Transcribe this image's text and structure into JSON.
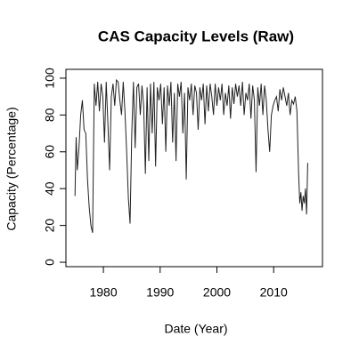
{
  "chart_data": {
    "type": "line",
    "title": "CAS Capacity Levels (Raw)",
    "x_label": "Date (Year)",
    "y_label": "Capacity (Percentage)",
    "color": "#222222",
    "x": [
      1975,
      1975.2,
      1975.4,
      1975.7,
      1976,
      1976.3,
      1976.6,
      1976.9,
      1977.2,
      1977.5,
      1977.8,
      1978.1,
      1978.4,
      1978.7,
      1979,
      1979.3,
      1979.6,
      1979.9,
      1980.2,
      1980.5,
      1980.8,
      1981.1,
      1981.4,
      1981.7,
      1982,
      1982.3,
      1982.6,
      1982.9,
      1983.2,
      1983.5,
      1983.8,
      1984.1,
      1984.4,
      1984.7,
      1985,
      1985.3,
      1985.6,
      1985.9,
      1986.2,
      1986.5,
      1986.8,
      1987.1,
      1987.4,
      1987.7,
      1988,
      1988.3,
      1988.6,
      1988.9,
      1989.2,
      1989.5,
      1989.8,
      1990.1,
      1990.4,
      1990.7,
      1991,
      1991.3,
      1991.6,
      1991.9,
      1992.2,
      1992.5,
      1992.8,
      1993.1,
      1993.4,
      1993.7,
      1994,
      1994.3,
      1994.6,
      1994.9,
      1995.2,
      1995.5,
      1995.8,
      1996.1,
      1996.4,
      1996.7,
      1997,
      1997.3,
      1997.6,
      1997.9,
      1998.2,
      1998.5,
      1998.8,
      1999.1,
      1999.4,
      1999.7,
      2000,
      2000.3,
      2000.6,
      2000.9,
      2001.2,
      2001.5,
      2001.8,
      2002.1,
      2002.4,
      2002.7,
      2003,
      2003.3,
      2003.6,
      2003.9,
      2004.2,
      2004.5,
      2004.8,
      2005.1,
      2005.4,
      2005.7,
      2006,
      2006.3,
      2006.6,
      2006.9,
      2007.2,
      2007.5,
      2007.8,
      2008.1,
      2008.4,
      2008.7,
      2009,
      2009.3,
      2009.6,
      2009.9,
      2010.2,
      2010.5,
      2010.8,
      2011.1,
      2011.4,
      2011.7,
      2012,
      2012.3,
      2012.6,
      2012.9,
      2013.2,
      2013.5,
      2013.8,
      2014.1,
      2014.4,
      2014.6,
      2014.8,
      2015,
      2015.2,
      2015.4,
      2015.6,
      2015.8,
      2016
    ],
    "values": [
      36,
      68,
      50,
      62,
      80,
      88,
      72,
      70,
      45,
      30,
      20,
      16,
      97,
      85,
      98,
      82,
      97,
      90,
      65,
      98,
      75,
      50,
      90,
      97,
      85,
      99,
      98,
      88,
      80,
      98,
      82,
      60,
      35,
      21,
      70,
      98,
      62,
      95,
      97,
      80,
      96,
      85,
      48,
      95,
      55,
      97,
      70,
      98,
      52,
      95,
      88,
      97,
      75,
      95,
      60,
      96,
      85,
      98,
      65,
      92,
      55,
      97,
      90,
      98,
      70,
      92,
      45,
      95,
      88,
      97,
      80,
      96,
      92,
      72,
      95,
      88,
      97,
      75,
      96,
      82,
      97,
      90,
      80,
      97,
      85,
      95,
      88,
      97,
      80,
      92,
      85,
      96,
      78,
      95,
      86,
      97,
      90,
      96,
      85,
      98,
      80,
      92,
      88,
      97,
      78,
      96,
      88,
      49,
      95,
      85,
      97,
      80,
      96,
      88,
      72,
      60,
      80,
      85,
      88,
      90,
      82,
      94,
      88,
      95,
      90,
      85,
      92,
      80,
      88,
      86,
      90,
      82,
      48,
      32,
      38,
      28,
      36,
      32,
      40,
      26,
      54
    ],
    "xlim": [
      1973.4,
      2018.6
    ],
    "ylim": [
      -2.4,
      104.8
    ],
    "xticks": [
      1980,
      1990,
      2000,
      2010
    ],
    "yticks": [
      0,
      20,
      40,
      60,
      80,
      100
    ]
  }
}
